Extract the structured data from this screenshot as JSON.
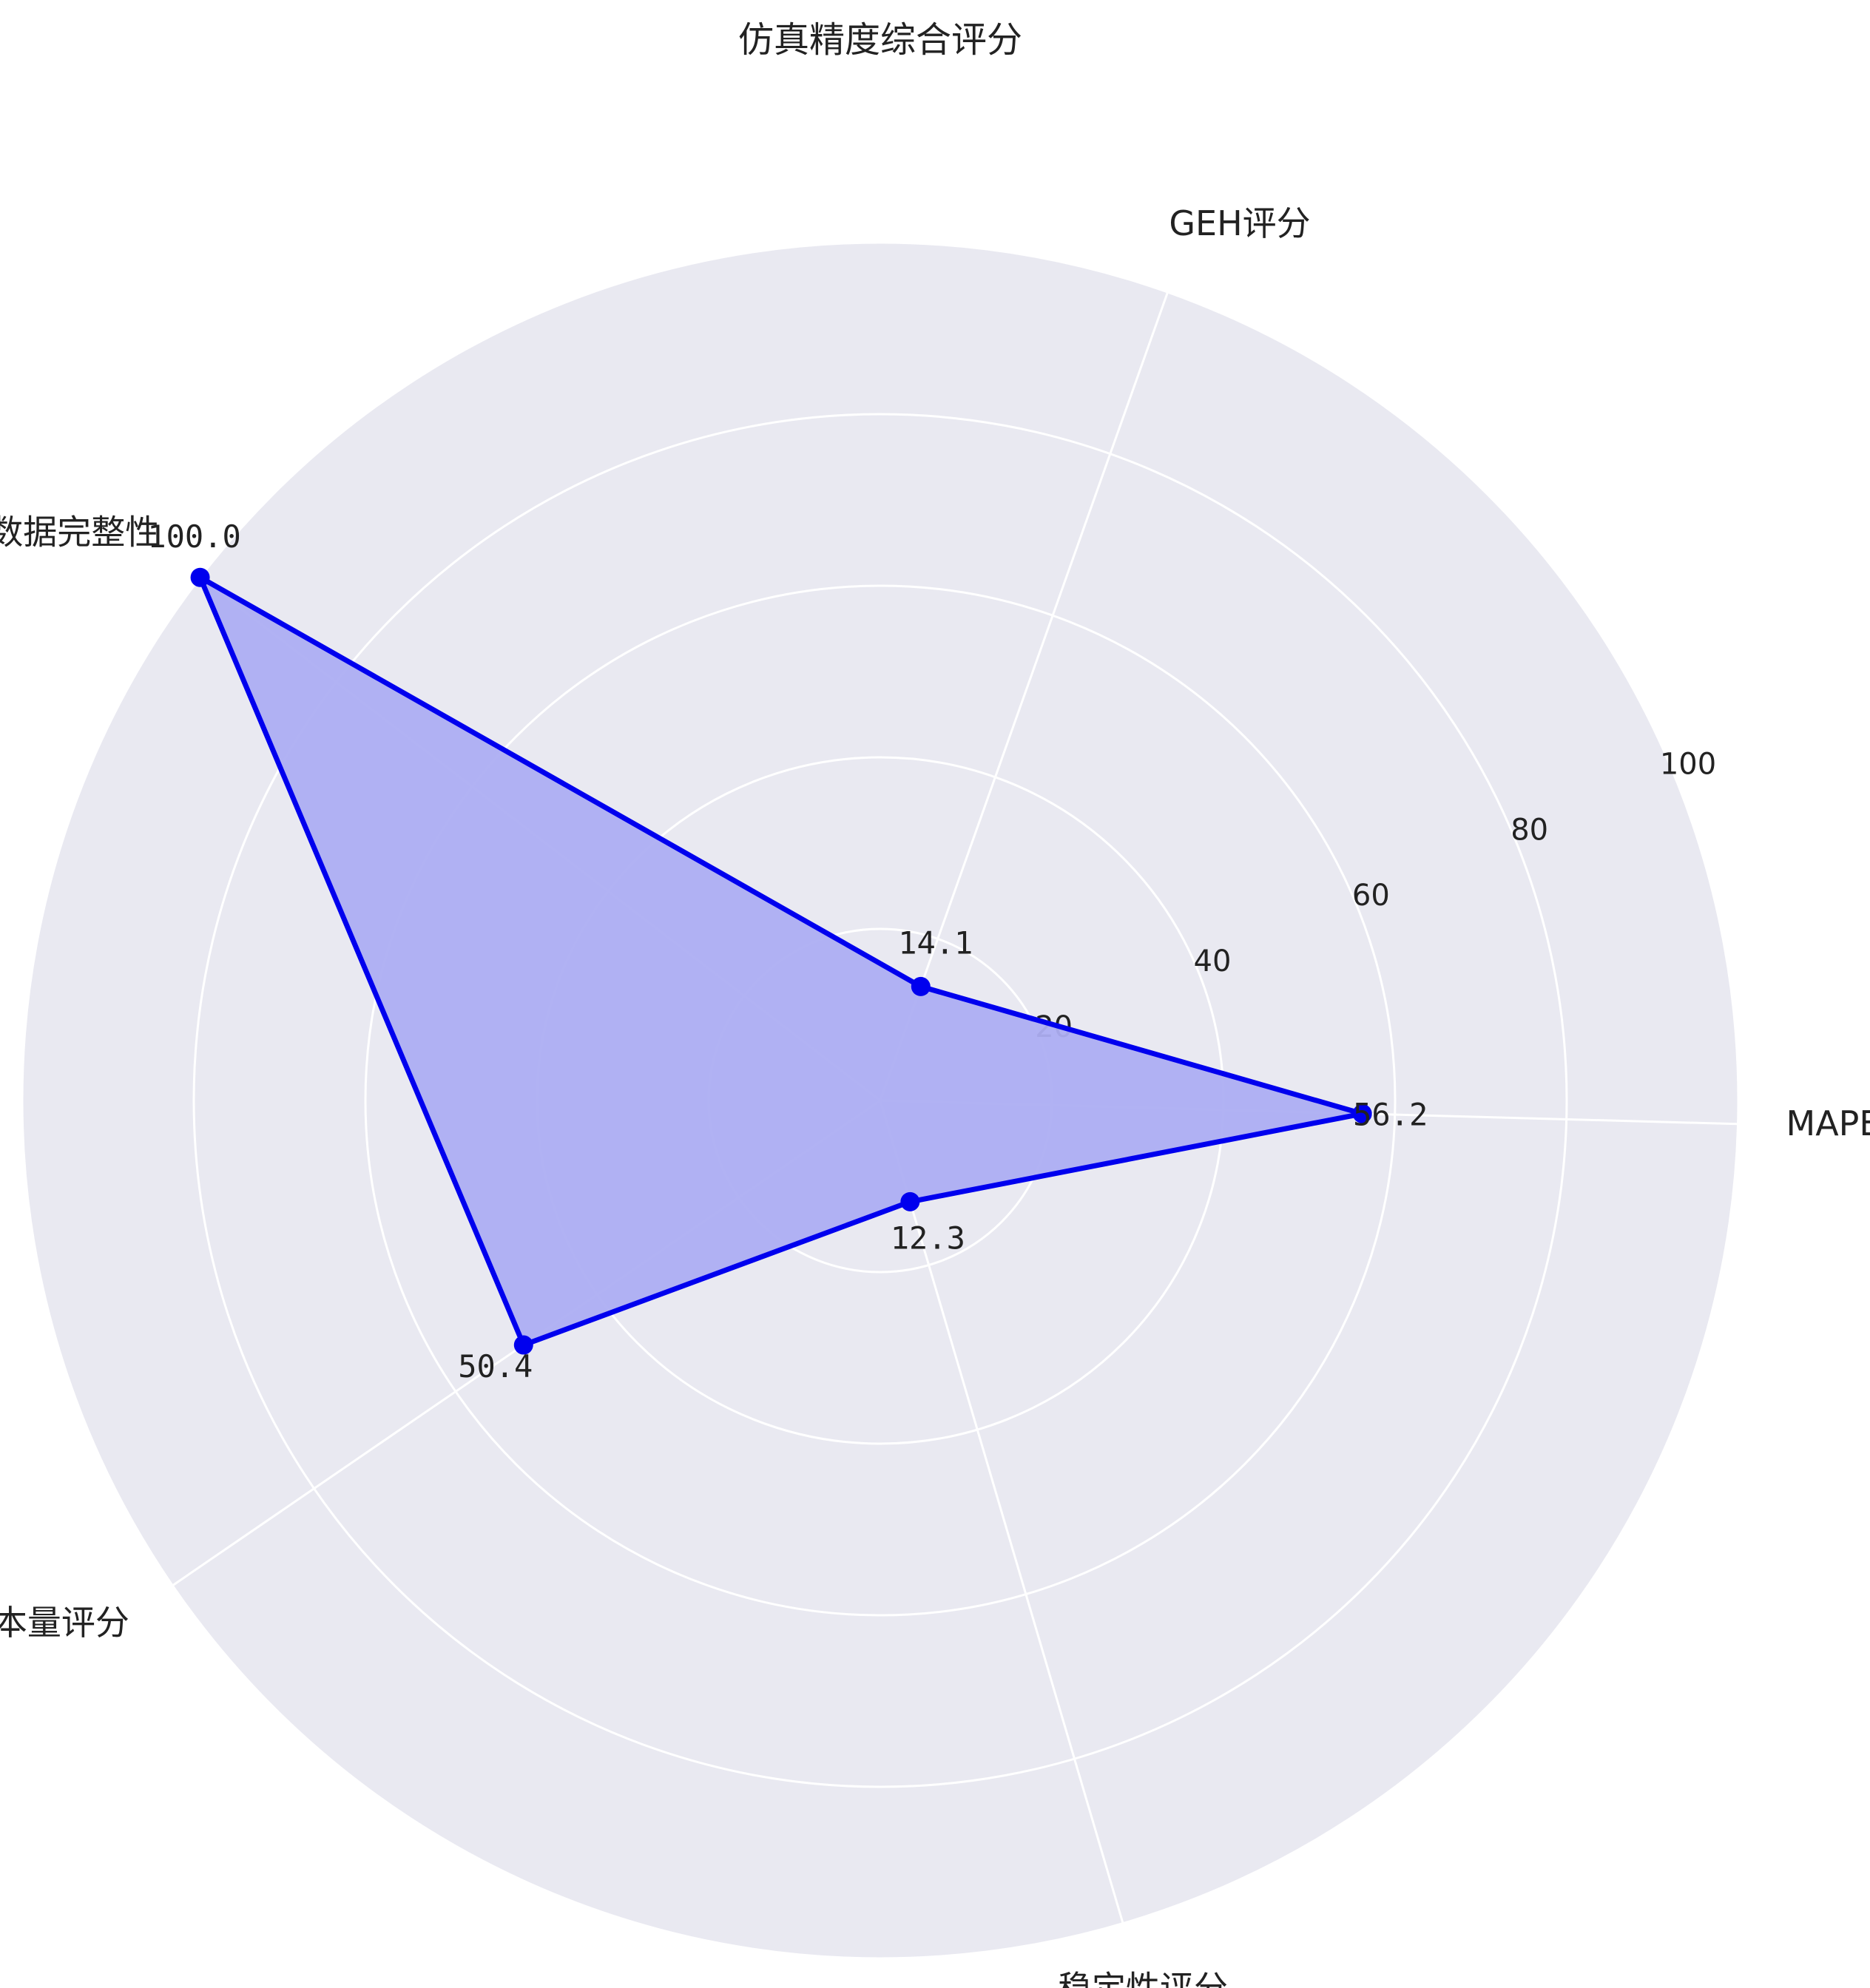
{
  "chart_data": {
    "type": "radar",
    "title": "仿真精度综合评分",
    "categories": [
      "MAPE评分",
      "GEH评分",
      "数据完整性",
      "样本量评分",
      "稳定性评分"
    ],
    "values": [
      56.2,
      14.1,
      100.0,
      50.4,
      12.3
    ],
    "value_labels": [
      "56.2",
      "14.1",
      "100.0",
      "50.4",
      "12.3"
    ],
    "rlim": [
      0,
      100
    ],
    "r_ticks": [
      20,
      40,
      60,
      80,
      100
    ],
    "r_tick_labels": [
      "20",
      "40",
      "60",
      "80",
      "100"
    ],
    "grid": true,
    "colors": {
      "background": "#e9e9f1",
      "grid": "#ffffff",
      "series": "#0000ee",
      "fill": "#adaef2"
    }
  }
}
